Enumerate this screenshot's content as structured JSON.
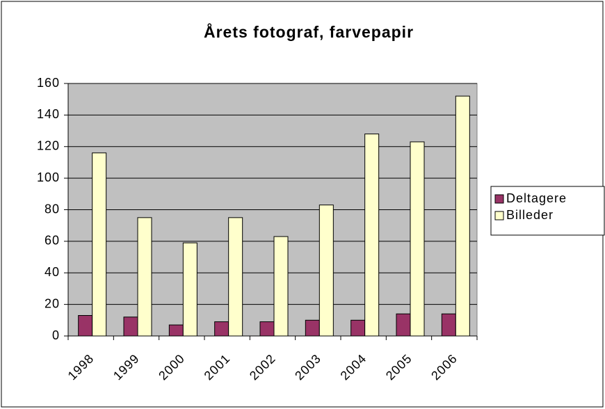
{
  "chart_data": {
    "type": "bar",
    "title": "Årets fotograf, farvepapir",
    "categories": [
      "1998",
      "1999",
      "2000",
      "2001",
      "2002",
      "2003",
      "2004",
      "2005",
      "2006"
    ],
    "series": [
      {
        "name": "Deltagere",
        "color": "#993366",
        "values": [
          13,
          12,
          7,
          9,
          9,
          10,
          10,
          14,
          14
        ]
      },
      {
        "name": "Billeder",
        "color": "#ffffcc",
        "values": [
          116,
          75,
          59,
          75,
          63,
          83,
          128,
          123,
          152
        ]
      }
    ],
    "ylim": [
      0,
      160
    ],
    "yticks": [
      0,
      20,
      40,
      60,
      80,
      100,
      120,
      140,
      160
    ],
    "grid": true,
    "legend": "right",
    "plot_background": "#c0c0c0"
  }
}
